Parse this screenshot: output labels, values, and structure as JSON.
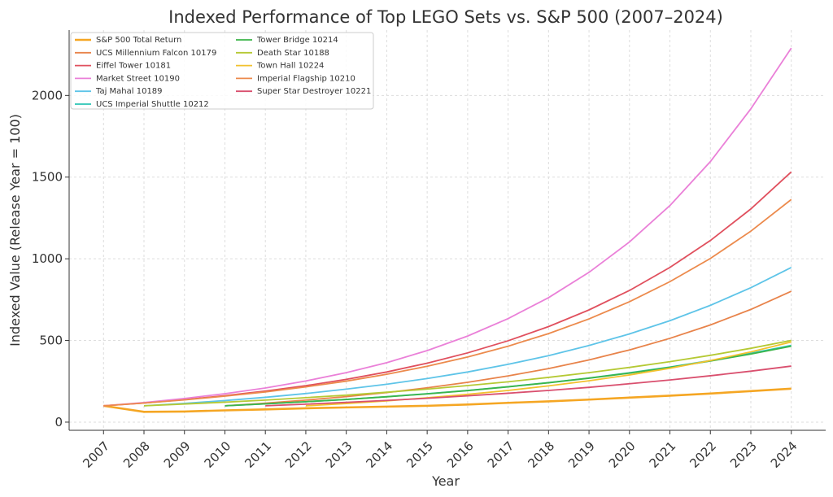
{
  "chart_data": {
    "type": "line",
    "title": "Indexed Performance of Top LEGO Sets vs. S&P 500 (2007–2024)",
    "x_label": "Year",
    "y_label": "Indexed Value (Release Year = 100)",
    "x": [
      2007,
      2008,
      2009,
      2010,
      2011,
      2012,
      2013,
      2014,
      2015,
      2016,
      2017,
      2018,
      2019,
      2020,
      2021,
      2022,
      2023,
      2024
    ],
    "xlim": [
      2006.15,
      2024.85
    ],
    "xticks": [
      2007,
      2008,
      2009,
      2010,
      2011,
      2012,
      2013,
      2014,
      2015,
      2016,
      2017,
      2018,
      2019,
      2020,
      2021,
      2022,
      2023,
      2024
    ],
    "ylim": [
      -50,
      2400
    ],
    "yticks": [
      0,
      500,
      1000,
      1500,
      2000
    ],
    "grid": true,
    "legend_position": "upper left",
    "series": [
      {
        "name": "S&P 500 Total Return",
        "color": "#f5a623",
        "values": [
          100,
          63,
          65,
          72,
          78,
          85,
          90,
          95,
          100,
          108,
          118,
          127,
          138,
          150,
          162,
          175,
          190,
          205
        ]
      },
      {
        "name": "UCS Millennium Falcon 10179",
        "color": "#e8834a",
        "values": [
          null,
          null,
          null,
          100,
          116,
          135,
          156,
          181,
          210,
          244,
          283,
          328,
          381,
          442,
          513,
          595,
          690,
          801
        ]
      },
      {
        "name": "Eiffel Tower 10181",
        "color": "#e0505e",
        "values": [
          100,
          117,
          138,
          162,
          190,
          223,
          262,
          307,
          361,
          424,
          498,
          585,
          687,
          806,
          947,
          1112,
          1305,
          1532
        ]
      },
      {
        "name": "Market Street 10190",
        "color": "#ea80d8",
        "values": [
          100,
          120,
          145,
          174,
          209,
          252,
          303,
          364,
          438,
          527,
          634,
          762,
          917,
          1103,
          1326,
          1595,
          1918,
          2290
        ]
      },
      {
        "name": "Taj Mahal 10189",
        "color": "#5ec4e8",
        "values": [
          null,
          100,
          115,
          132,
          152,
          175,
          202,
          232,
          267,
          307,
          354,
          407,
          469,
          540,
          621,
          715,
          823,
          947
        ]
      },
      {
        "name": "UCS Imperial Shuttle 10212",
        "color": "#2cc4b4",
        "values": [
          null,
          null,
          null,
          100,
          112,
          125,
          139,
          156,
          174,
          194,
          217,
          242,
          270,
          302,
          337,
          377,
          421,
          470
        ]
      },
      {
        "name": "Tower Bridge 10214",
        "color": "#3cb54a",
        "values": [
          null,
          null,
          null,
          100,
          112,
          125,
          139,
          155,
          173,
          193,
          216,
          241,
          269,
          300,
          335,
          374,
          417,
          465
        ]
      },
      {
        "name": "Death Star 10188",
        "color": "#b5c934",
        "values": [
          null,
          100,
          111,
          122,
          135,
          150,
          165,
          183,
          202,
          224,
          247,
          274,
          303,
          335,
          370,
          409,
          452,
          500
        ]
      },
      {
        "name": "Town Hall 10224",
        "color": "#f2c12e",
        "values": [
          null,
          null,
          null,
          null,
          null,
          100,
          114,
          130,
          149,
          170,
          194,
          222,
          253,
          289,
          330,
          377,
          430,
          491
        ]
      },
      {
        "name": "Imperial Flagship 10210",
        "color": "#ec8a4c",
        "values": [
          100,
          117,
          136,
          159,
          185,
          216,
          251,
          293,
          342,
          399,
          465,
          542,
          632,
          737,
          860,
          1002,
          1169,
          1363
        ]
      },
      {
        "name": "Super Star Destroyer 10221",
        "color": "#d94f6e",
        "values": [
          null,
          null,
          null,
          null,
          100,
          110,
          121,
          133,
          146,
          161,
          177,
          194,
          213,
          235,
          258,
          284,
          312,
          343
        ]
      }
    ]
  }
}
